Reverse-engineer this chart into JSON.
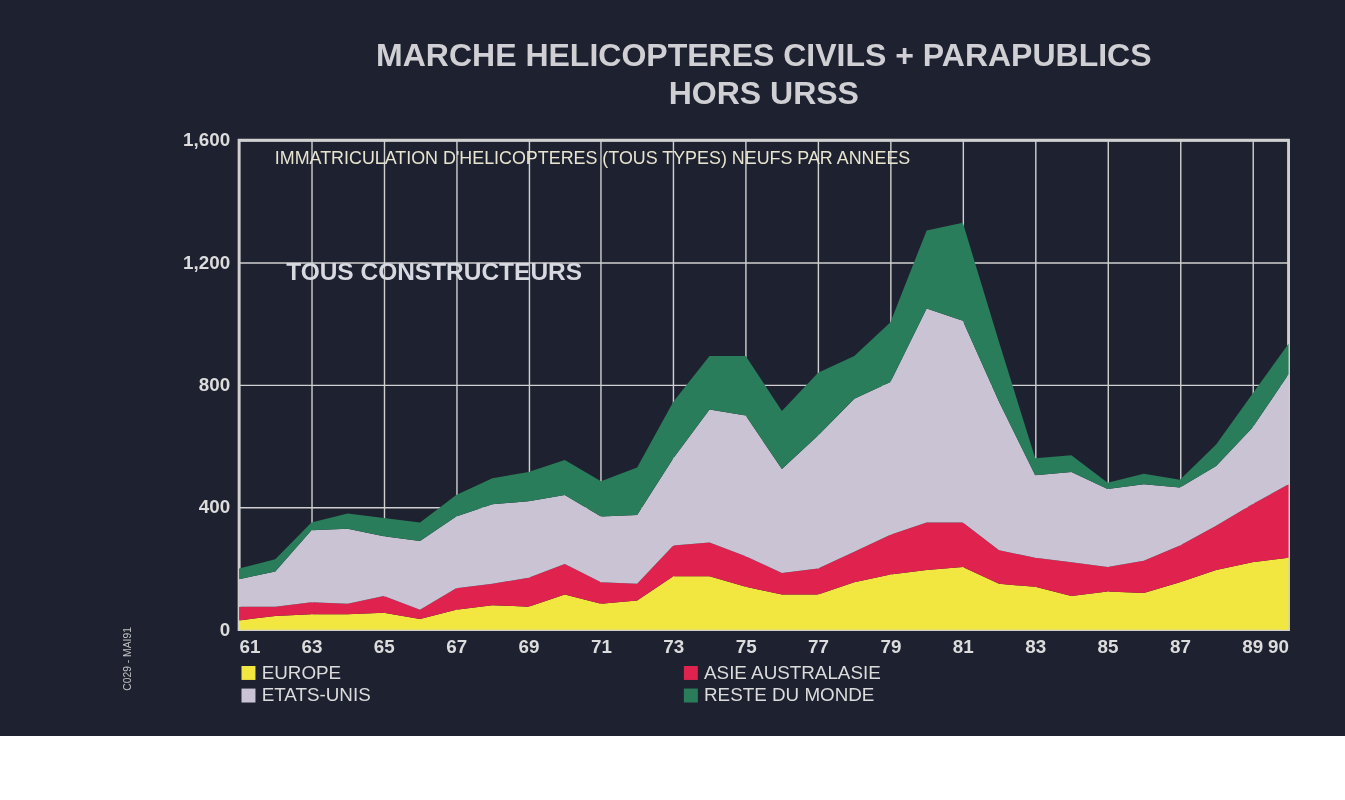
{
  "chart_data": {
    "type": "area",
    "stacked": true,
    "title": "MARCHE HELICOPTERES CIVILS + PARAPUBLICS\nHORS URSS",
    "subtitle": "IMMATRICULATION D'HELICOPTERES (TOUS TYPES) NEUFS PAR ANNEES",
    "annotations": [
      "TOUS CONSTRUCTEURS",
      "C029 - MAI91"
    ],
    "x": [
      61,
      62,
      63,
      64,
      65,
      66,
      67,
      68,
      69,
      70,
      71,
      72,
      73,
      74,
      75,
      76,
      77,
      78,
      79,
      80,
      81,
      82,
      83,
      84,
      85,
      86,
      87,
      88,
      89,
      90
    ],
    "series": [
      {
        "name": "EUROPE",
        "color": "#f2e640",
        "values": [
          30,
          45,
          50,
          50,
          55,
          35,
          65,
          80,
          75,
          115,
          85,
          95,
          175,
          175,
          140,
          115,
          115,
          155,
          180,
          195,
          205,
          150,
          140,
          110,
          125,
          120,
          155,
          195,
          220,
          235
        ]
      },
      {
        "name": "ASIE AUSTRALASIE",
        "color": "#e0234e",
        "values": [
          45,
          30,
          40,
          35,
          55,
          30,
          70,
          70,
          95,
          100,
          70,
          55,
          100,
          110,
          100,
          70,
          85,
          100,
          130,
          155,
          145,
          110,
          95,
          110,
          80,
          105,
          120,
          145,
          190,
          240
        ]
      },
      {
        "name": "ETATS-UNIS",
        "color": "#c9c3d3",
        "values": [
          90,
          115,
          235,
          245,
          195,
          225,
          235,
          260,
          250,
          225,
          215,
          225,
          285,
          435,
          460,
          340,
          435,
          500,
          500,
          700,
          660,
          485,
          270,
          295,
          255,
          250,
          190,
          195,
          250,
          360
        ]
      },
      {
        "name": "RESTE DU MONDE",
        "color": "#2a7d5a",
        "values": [
          35,
          40,
          25,
          50,
          60,
          60,
          70,
          85,
          95,
          115,
          115,
          155,
          185,
          175,
          195,
          190,
          205,
          140,
          195,
          255,
          320,
          195,
          55,
          55,
          20,
          35,
          25,
          70,
          110,
          100
        ]
      }
    ],
    "xlim": [
      61,
      90
    ],
    "xticks": [
      61,
      63,
      65,
      67,
      69,
      71,
      73,
      75,
      77,
      79,
      81,
      83,
      85,
      87,
      89,
      90
    ],
    "ylim": [
      0,
      1600
    ],
    "yticks": [
      0,
      400,
      800,
      {
        "value": 1200,
        "label": "1,200"
      },
      {
        "value": 1600,
        "label": "1,600"
      }
    ],
    "grid": true,
    "legend": "bottom"
  }
}
